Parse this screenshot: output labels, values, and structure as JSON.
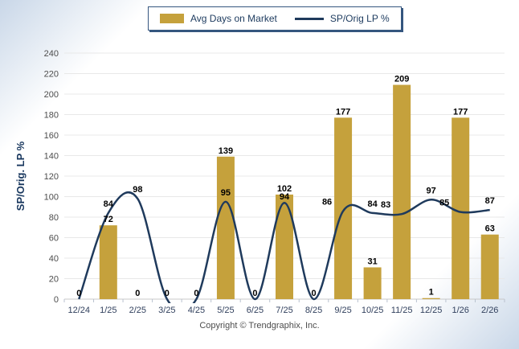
{
  "footer": {
    "copyright": "Copyright © Trendgraphix, Inc."
  },
  "colors": {
    "bar": "#C5A13C",
    "line": "#1F3A5C",
    "grid": "#e8e8e8",
    "baseline": "#c8c8c8",
    "tick": "#b9c2cf",
    "y_tick_text": "#4d4d4d",
    "x_tick_text": "#32415e",
    "ylabel_text": "#17365D",
    "data_label_text": "#000000"
  },
  "chart_data": {
    "type": "combo",
    "categories": [
      "12/24",
      "1/25",
      "2/25",
      "3/25",
      "4/25",
      "5/25",
      "6/25",
      "7/25",
      "8/25",
      "9/25",
      "10/25",
      "11/25",
      "12/25",
      "1/26",
      "2/26"
    ],
    "series": [
      {
        "name": "Avg Days on Market",
        "type": "bar",
        "color": "#C5A13C",
        "values": [
          0,
          72,
          0,
          0,
          0,
          139,
          0,
          102,
          0,
          177,
          31,
          209,
          1,
          177,
          63
        ]
      },
      {
        "name": "SP/Orig LP %",
        "type": "line",
        "color": "#1F3A5C",
        "values": [
          0,
          84,
          98,
          0,
          0,
          95,
          0,
          94,
          0,
          86,
          84,
          83,
          97,
          85,
          87
        ]
      }
    ],
    "title": "",
    "xlabel": "",
    "ylabel": "SP/Orig. LP %",
    "ylim": [
      0,
      240
    ],
    "yticks": [
      0,
      20,
      40,
      60,
      80,
      100,
      120,
      140,
      160,
      180,
      200,
      220,
      240
    ],
    "grid": true,
    "data_labels": true,
    "legend_position": "top-center",
    "line_style": "smooth"
  }
}
